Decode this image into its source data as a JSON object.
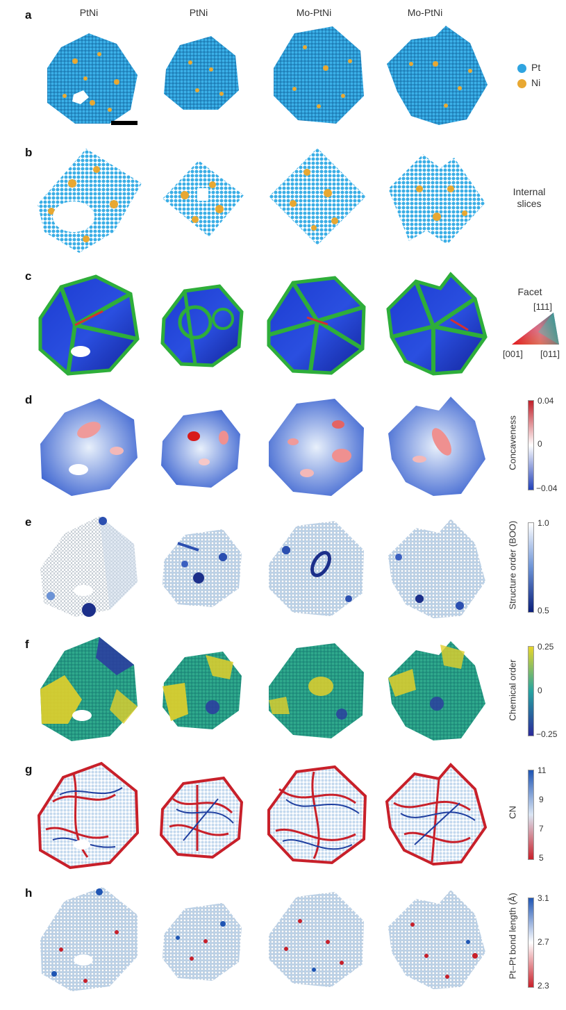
{
  "columns": [
    "PtNi",
    "PtNi",
    "Mo-PtNi",
    "Mo-PtNi"
  ],
  "rows": [
    {
      "letter": "a",
      "label": ""
    },
    {
      "letter": "b",
      "label": "Internal slices"
    },
    {
      "letter": "c",
      "label": "Facet"
    },
    {
      "letter": "d",
      "label": "Concaveness"
    },
    {
      "letter": "e",
      "label": "Structure order (BOO)"
    },
    {
      "letter": "f",
      "label": "Chemical order"
    },
    {
      "letter": "g",
      "label": "CN"
    },
    {
      "letter": "h",
      "label": "Pt–Pt bond length (Å)"
    }
  ],
  "legend_a": [
    {
      "label": "Pt",
      "color": "#2fa4e0"
    },
    {
      "label": "Ni",
      "color": "#e8a832"
    }
  ],
  "internal_slices_label": [
    "Internal",
    "slices"
  ],
  "facet_legend": {
    "title": "Facet",
    "top": "[111]",
    "left": "[001]",
    "right": "[011]"
  },
  "colorbars": {
    "d": {
      "label": "Concaveness",
      "top": "0.04",
      "mid": "0",
      "bottom": "−0.04",
      "colors": [
        "#c0202a",
        "#ffffff",
        "#2140b8"
      ]
    },
    "e": {
      "label": "Structure order (BOO)",
      "top": "1.0",
      "bottom": "0.5",
      "colors": [
        "#ffffff",
        "#6c93d6",
        "#0b1f7a"
      ]
    },
    "f": {
      "label": "Chemical order",
      "top": "0.25",
      "mid": "0",
      "bottom": "−0.25",
      "colors": [
        "#e6d52b",
        "#27a3a0",
        "#2b2a9a"
      ]
    },
    "g": {
      "label": "CN",
      "top": "11",
      "mid1": "9",
      "mid2": "7",
      "bottom": "5",
      "colors": [
        "#1f55b3",
        "#dbe6f3",
        "#c8202a"
      ]
    },
    "h": {
      "label": "Pt–Pt bond length (Å)",
      "top": "3.1",
      "mid": "2.7",
      "bottom": "2.3",
      "colors": [
        "#1f55b3",
        "#ffffff",
        "#c8202a"
      ]
    }
  }
}
